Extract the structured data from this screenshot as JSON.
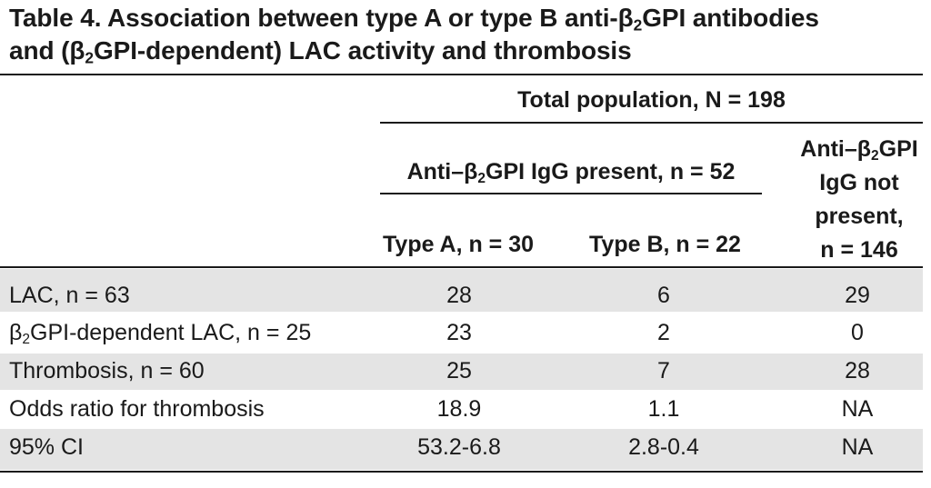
{
  "title": {
    "prefix": "Table 4.",
    "line1": "Association between type A or type B anti-β",
    "line1_sub": "2",
    "line1_end": "GPI antibodies",
    "line2_start": "and (β",
    "line2_sub": "2",
    "line2_end": "GPI-dependent) LAC activity and thrombosis"
  },
  "header": {
    "total": "Total population, N = 198",
    "present_pre": "Anti–β",
    "present_sub": "2",
    "present_post": "GPI IgG present, n = 52",
    "not_present_l1_pre": "Anti–β",
    "not_present_l1_sub": "2",
    "not_present_l1_post": "GPI",
    "not_present_l2": "IgG not",
    "not_present_l3": "present,",
    "not_present_l4": "n = 146",
    "type_a": "Type A, n = 30",
    "type_b": "Type B, n = 22"
  },
  "rows": [
    {
      "label": "LAC, n = 63",
      "a": "28",
      "b": "6",
      "c": "29"
    },
    {
      "label_pre": "β",
      "label_sub": "2",
      "label_post": "GPI-dependent LAC, n = 25",
      "a": "23",
      "b": "2",
      "c": "0"
    },
    {
      "label": "Thrombosis, n = 60",
      "a": "25",
      "b": "7",
      "c": "28"
    },
    {
      "label": "Odds ratio for thrombosis",
      "a": "18.9",
      "b": "1.1",
      "c": "NA"
    },
    {
      "label": "95% CI",
      "a": "53.2-6.8",
      "b": "2.8-0.4",
      "c": "NA"
    }
  ]
}
